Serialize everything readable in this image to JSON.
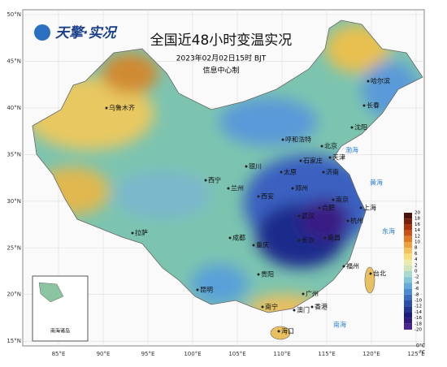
{
  "logo": "天擎·实况",
  "title": "全国近48小时变温实况",
  "subtitle": "2023年02月02日15时 BJT",
  "credit": "信息中心制",
  "lat_ticks": [
    {
      "value": 50,
      "label": "50°N"
    },
    {
      "value": 45,
      "label": "45°N"
    },
    {
      "value": 40,
      "label": "40°N"
    },
    {
      "value": 35,
      "label": "35°N"
    },
    {
      "value": 30,
      "label": "30°N"
    },
    {
      "value": 25,
      "label": "25°N"
    },
    {
      "value": 20,
      "label": "20°N"
    },
    {
      "value": 15,
      "label": "15°N"
    }
  ],
  "lon_ticks": [
    {
      "value": 85,
      "label": "85°E"
    },
    {
      "value": 90,
      "label": "90°E"
    },
    {
      "value": 95,
      "label": "95°E"
    },
    {
      "value": 100,
      "label": "100°E"
    },
    {
      "value": 105,
      "label": "105°E"
    },
    {
      "value": 110,
      "label": "110°E"
    },
    {
      "value": 115,
      "label": "115°E"
    },
    {
      "value": 120,
      "label": "120°E"
    },
    {
      "value": 125,
      "label": "125°E"
    }
  ],
  "legend": {
    "unit": "°C",
    "zero_label": "0°C",
    "ticks": [
      20,
      18,
      16,
      14,
      12,
      10,
      8,
      6,
      4,
      2,
      0,
      -2,
      -4,
      -6,
      -8,
      -10,
      -12,
      -14,
      -16,
      -18,
      -20
    ],
    "colors": [
      "#4a1208",
      "#7a2008",
      "#a8340a",
      "#cc5214",
      "#e07a24",
      "#eea03c",
      "#f4c25a",
      "#f8dc7c",
      "#eeeaa8",
      "#cfe6bc",
      "#a8dacc",
      "#82c6d8",
      "#62aadc",
      "#4a8cd2",
      "#3a6cc2",
      "#2c4eac",
      "#223494",
      "#1c1c7c",
      "#301a7e",
      "#4c2690"
    ]
  },
  "cities": [
    "乌鲁木齐",
    "哈尔滨",
    "长春",
    "沈阳",
    "呼和浩特",
    "北京",
    "天津",
    "石家庄",
    "太原",
    "济南",
    "银川",
    "兰州",
    "西宁",
    "西安",
    "郑州",
    "合肥",
    "南京",
    "上海",
    "杭州",
    "武汉",
    "成都",
    "重庆",
    "长沙",
    "南昌",
    "福州",
    "台北",
    "贵阳",
    "昆明",
    "南宁",
    "广州",
    "香港",
    "澳门",
    "海口",
    "拉萨"
  ],
  "seas": [
    "渤海",
    "黄海",
    "东海",
    "南海"
  ],
  "inset": {
    "label": "南海诸岛"
  }
}
